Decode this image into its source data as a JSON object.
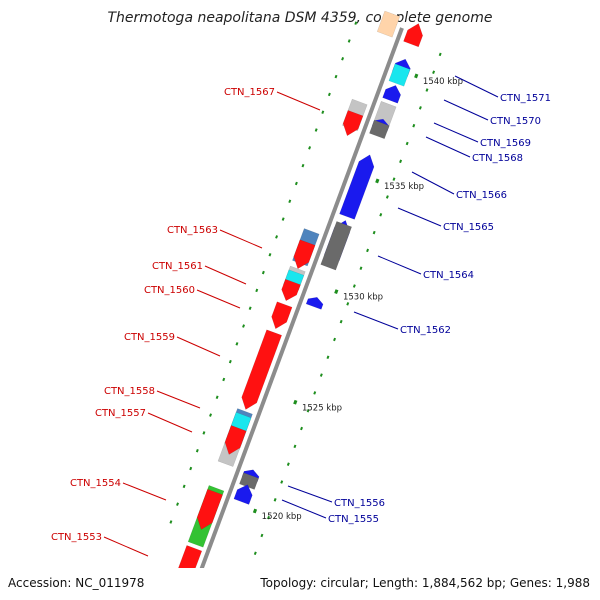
{
  "title": "Thermotoga neapolitana DSM 4359, complete genome",
  "accession": "Accession: NC_011978",
  "topology": "Topology: circular; Length: 1,884,562 bp; Genes: 1,988",
  "colors": {
    "red": "#ff1111",
    "blue": "#1a1aee",
    "light_gray": "#c4c4c4",
    "dark_gray": "#6a6a6a",
    "cyan": "#19e6ee",
    "steel_blue": "#4f84bd",
    "green": "#33c233",
    "peach": "#ffd4aa",
    "backbone": "#8c8c8c",
    "tick": "#1e8e1e",
    "left_label": "#cc0000",
    "right_label": "#000099"
  },
  "ticks": [
    {
      "label": "1540 kbp"
    },
    {
      "label": "1535 kbp"
    },
    {
      "label": "1530 kbp"
    },
    {
      "label": "1525 kbp"
    },
    {
      "label": "1520 kbp"
    }
  ],
  "left_labels": [
    {
      "id": "ctn-1567",
      "text": "CTN_1567"
    },
    {
      "id": "ctn-1563",
      "text": "CTN_1563"
    },
    {
      "id": "ctn-1561",
      "text": "CTN_1561"
    },
    {
      "id": "ctn-1560",
      "text": "CTN_1560"
    },
    {
      "id": "ctn-1559",
      "text": "CTN_1559"
    },
    {
      "id": "ctn-1558",
      "text": "CTN_1558"
    },
    {
      "id": "ctn-1557",
      "text": "CTN_1557"
    },
    {
      "id": "ctn-1554",
      "text": "CTN_1554"
    },
    {
      "id": "ctn-1553",
      "text": "CTN_1553"
    }
  ],
  "right_labels": [
    {
      "id": "ctn-1571",
      "text": "CTN_1571"
    },
    {
      "id": "ctn-1570",
      "text": "CTN_1570"
    },
    {
      "id": "ctn-1569",
      "text": "CTN_1569"
    },
    {
      "id": "ctn-1568",
      "text": "CTN_1568"
    },
    {
      "id": "ctn-1566",
      "text": "CTN_1566"
    },
    {
      "id": "ctn-1565",
      "text": "CTN_1565"
    },
    {
      "id": "ctn-1564",
      "text": "CTN_1564"
    },
    {
      "id": "ctn-1562",
      "text": "CTN_1562"
    },
    {
      "id": "ctn-1556",
      "text": "CTN_1556"
    },
    {
      "id": "ctn-1555",
      "text": "CTN_1555"
    }
  ]
}
